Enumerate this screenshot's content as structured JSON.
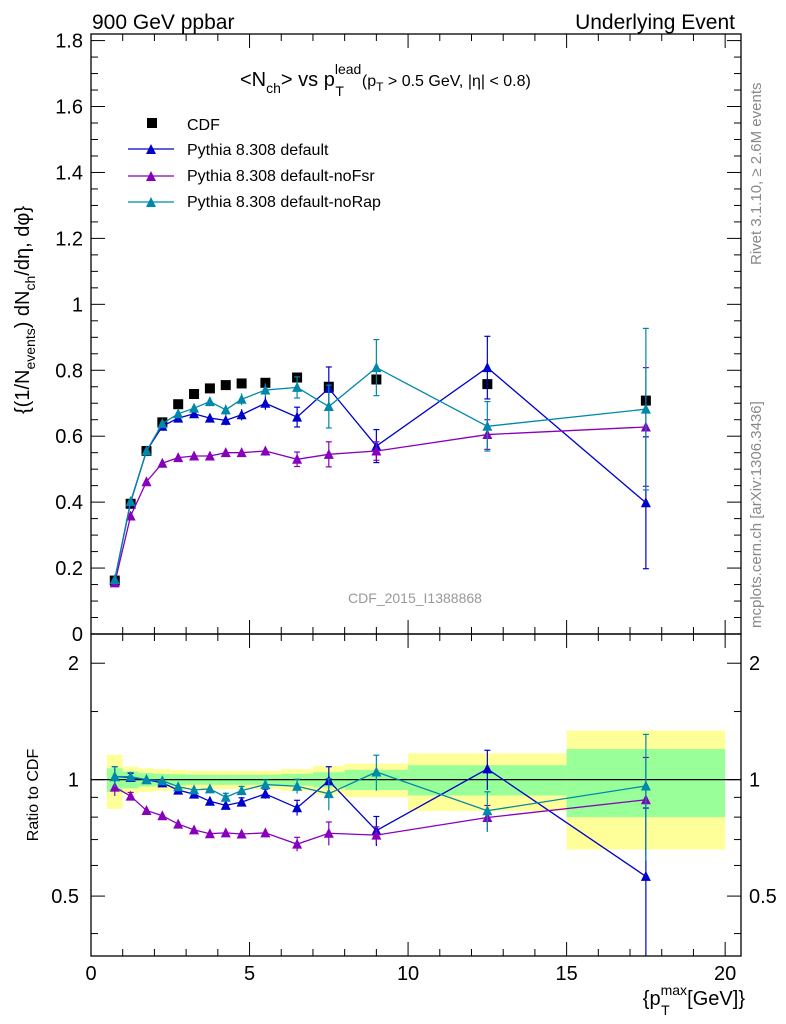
{
  "header": {
    "left": "900 GeV ppbar",
    "right": "Underlying Event"
  },
  "side": {
    "rivet": "Rivet 3.1.10, ≥ 2.6M events",
    "mcplots": "mcplots.cern.ch [arXiv:1306.3436]"
  },
  "chart_data": {
    "type": "scatter",
    "analysis_label": "CDF_2015_I1388868",
    "title": {
      "main": "<N",
      "main_sub": "ch",
      "vs": "> vs p",
      "sup": "lead",
      "sub": "T",
      "cut_a": "(p",
      "cut_a_sub": "T",
      "cut_b": " > 0.5 GeV, |η| < 0.8)"
    },
    "ylabel": {
      "a": "{(1/N",
      "a_sub": "events",
      "b": ") dN",
      "b_sub": "ch",
      "c": "/dη, dφ}"
    },
    "xlabel": {
      "a": "{p",
      "sub": "T",
      "sup": "max",
      "b": " [GeV]}"
    },
    "ratio_ylabel": "Ratio to CDF",
    "xlim": [
      0,
      20.5
    ],
    "ylim": [
      0,
      1.82
    ],
    "ratio_ylim": [
      0.35,
      2.38
    ],
    "xticks": [
      0,
      5,
      10,
      15,
      20
    ],
    "xtick_labels": [
      "0",
      "5",
      "10",
      "15",
      "20"
    ],
    "yticks": [
      0,
      0.2,
      0.4,
      0.6,
      0.8,
      1,
      1.2,
      1.4,
      1.6,
      1.8
    ],
    "ytick_labels": [
      "0",
      "0.2",
      "0.4",
      "0.6",
      "0.8",
      "1",
      "1.2",
      "1.4",
      "1.6",
      "1.8"
    ],
    "ratio_yticks": [
      0.5,
      1,
      2
    ],
    "ratio_ytick_labels": [
      "0.5",
      "1",
      "2"
    ],
    "x": [
      0.75,
      1.25,
      1.75,
      2.25,
      2.75,
      3.25,
      3.75,
      4.25,
      4.75,
      5.5,
      6.5,
      7.5,
      9.0,
      12.5,
      17.5
    ],
    "bin_edges": [
      0.5,
      1.0,
      1.5,
      2.0,
      2.5,
      3.0,
      3.5,
      4.0,
      4.5,
      5.0,
      6.0,
      7.0,
      8.0,
      10.0,
      15.0,
      20.0
    ],
    "data": {
      "name": "CDF",
      "color": "#000000",
      "values": [
        0.162,
        0.395,
        0.555,
        0.642,
        0.697,
        0.728,
        0.745,
        0.755,
        0.76,
        0.762,
        0.778,
        0.75,
        0.772,
        0.758,
        0.708
      ],
      "band_inner": [
        0.07,
        0.05,
        0.04,
        0.035,
        0.033,
        0.03,
        0.03,
        0.03,
        0.03,
        0.03,
        0.035,
        0.045,
        0.06,
        0.09,
        0.2
      ],
      "band_outer": [
        0.16,
        0.08,
        0.07,
        0.065,
        0.06,
        0.055,
        0.055,
        0.055,
        0.055,
        0.055,
        0.065,
        0.085,
        0.1,
        0.17,
        0.34
      ],
      "band_inner_color": "#99ff99",
      "band_outer_color": "#ffff99"
    },
    "series": [
      {
        "name": "Pythia 8.308 default",
        "color": "#0000cc",
        "values": [
          0.165,
          0.4,
          0.555,
          0.63,
          0.655,
          0.668,
          0.655,
          0.648,
          0.665,
          0.7,
          0.658,
          0.745,
          0.57,
          0.808,
          0.398
        ],
        "errors": [
          0.01,
          0.01,
          0.01,
          0.012,
          0.012,
          0.012,
          0.013,
          0.015,
          0.017,
          0.02,
          0.03,
          0.065,
          0.05,
          0.095,
          0.2
        ]
      },
      {
        "name": "Pythia 8.308 default-noFsr",
        "color": "#8800bb",
        "values": [
          0.155,
          0.358,
          0.462,
          0.518,
          0.535,
          0.54,
          0.54,
          0.55,
          0.55,
          0.555,
          0.53,
          0.545,
          0.555,
          0.605,
          0.628
        ],
        "errors": [
          0.008,
          0.008,
          0.008,
          0.009,
          0.01,
          0.01,
          0.011,
          0.012,
          0.013,
          0.014,
          0.022,
          0.038,
          0.028,
          0.045,
          0.18
        ]
      },
      {
        "name": "Pythia 8.308 default-noRap",
        "color": "#0088aa",
        "values": [
          0.165,
          0.402,
          0.555,
          0.638,
          0.668,
          0.685,
          0.705,
          0.68,
          0.712,
          0.74,
          0.748,
          0.69,
          0.808,
          0.63,
          0.682
        ],
        "errors": [
          0.01,
          0.01,
          0.01,
          0.012,
          0.012,
          0.013,
          0.014,
          0.016,
          0.018,
          0.02,
          0.032,
          0.065,
          0.085,
          0.075,
          0.245
        ]
      }
    ]
  }
}
